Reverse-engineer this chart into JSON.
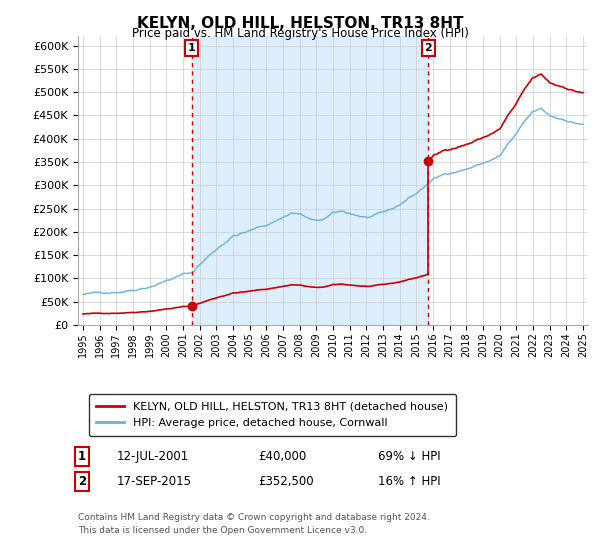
{
  "title": "KELYN, OLD HILL, HELSTON, TR13 8HT",
  "subtitle": "Price paid vs. HM Land Registry's House Price Index (HPI)",
  "legend_line1": "KELYN, OLD HILL, HELSTON, TR13 8HT (detached house)",
  "legend_line2": "HPI: Average price, detached house, Cornwall",
  "transaction1_date": "12-JUL-2001",
  "transaction1_price": 40000,
  "transaction1_year": 2001.53,
  "transaction2_date": "17-SEP-2015",
  "transaction2_price": 352500,
  "transaction2_year": 2015.71,
  "footnote1": "Contains HM Land Registry data © Crown copyright and database right 2024.",
  "footnote2": "This data is licensed under the Open Government Licence v3.0.",
  "property_color": "#cc0000",
  "hpi_color": "#6ab0e0",
  "shade_color": "#ddeeff",
  "ylim_max": 620000,
  "xlim_min": 1994.7,
  "xlim_max": 2025.3,
  "bg_color": "#ffffff"
}
